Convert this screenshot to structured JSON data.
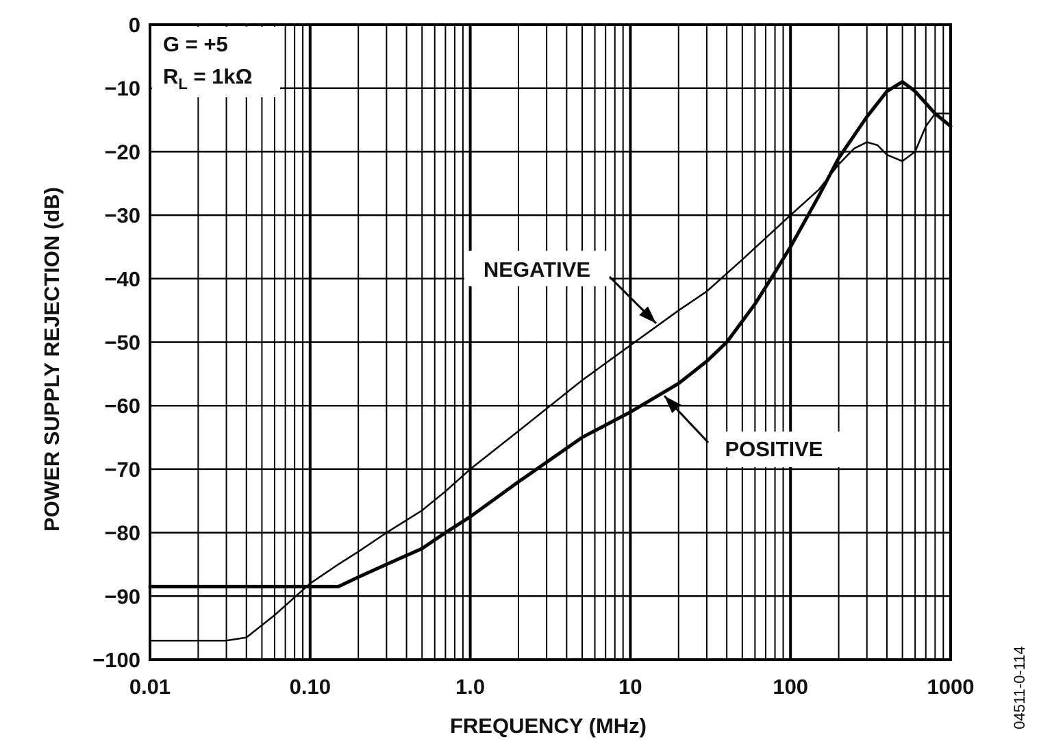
{
  "chart_data": {
    "type": "line",
    "xlabel": "FREQUENCY (MHz)",
    "ylabel": "POWER SUPPLY REJECTION (dB)",
    "x_scale": "log",
    "xlim": [
      0.01,
      1000
    ],
    "ylim": [
      -100,
      0
    ],
    "x_tick_labels": [
      "0.01",
      "0.10",
      "1.0",
      "10",
      "100",
      "1000"
    ],
    "y_tick_labels": [
      "0",
      "−10",
      "−20",
      "−30",
      "−40",
      "−50",
      "−60",
      "−70",
      "−80",
      "−90",
      "−100"
    ],
    "grid": true,
    "condition_line1": "G = +5",
    "condition_line2_main": "R",
    "condition_line2_sub": "L",
    "condition_line2_rest": " = 1kΩ",
    "figure_id": "04511-0-114",
    "series": [
      {
        "name": "NEGATIVE",
        "points": [
          [
            0.01,
            -97
          ],
          [
            0.02,
            -97
          ],
          [
            0.03,
            -97
          ],
          [
            0.04,
            -96.5
          ],
          [
            0.06,
            -93
          ],
          [
            0.1,
            -88
          ],
          [
            0.15,
            -85
          ],
          [
            0.2,
            -83
          ],
          [
            0.3,
            -80
          ],
          [
            0.5,
            -76.5
          ],
          [
            0.7,
            -73.5
          ],
          [
            1,
            -70
          ],
          [
            2,
            -64
          ],
          [
            5,
            -56
          ],
          [
            10,
            -50.5
          ],
          [
            20,
            -45
          ],
          [
            30,
            -42
          ],
          [
            50,
            -37
          ],
          [
            100,
            -30
          ],
          [
            150,
            -26
          ],
          [
            200,
            -22
          ],
          [
            250,
            -19.5
          ],
          [
            300,
            -18.5
          ],
          [
            350,
            -19
          ],
          [
            400,
            -20.5
          ],
          [
            500,
            -21.5
          ],
          [
            600,
            -20
          ],
          [
            700,
            -16
          ],
          [
            800,
            -14
          ],
          [
            1000,
            -14
          ]
        ]
      },
      {
        "name": "POSITIVE",
        "points": [
          [
            0.01,
            -88.5
          ],
          [
            0.05,
            -88.5
          ],
          [
            0.1,
            -88.5
          ],
          [
            0.15,
            -88.5
          ],
          [
            0.2,
            -87
          ],
          [
            0.3,
            -85
          ],
          [
            0.5,
            -82.5
          ],
          [
            0.7,
            -80
          ],
          [
            1,
            -77.5
          ],
          [
            2,
            -72
          ],
          [
            5,
            -65
          ],
          [
            10,
            -61
          ],
          [
            20,
            -56.5
          ],
          [
            30,
            -53
          ],
          [
            40,
            -50
          ],
          [
            60,
            -44
          ],
          [
            80,
            -39
          ],
          [
            100,
            -35
          ],
          [
            150,
            -27
          ],
          [
            200,
            -21
          ],
          [
            300,
            -14.5
          ],
          [
            400,
            -10.5
          ],
          [
            500,
            -9
          ],
          [
            600,
            -10.5
          ],
          [
            800,
            -14
          ],
          [
            1000,
            -16
          ]
        ]
      }
    ],
    "annotations": [
      {
        "text": "NEGATIVE",
        "series": "NEGATIVE",
        "x": 15,
        "y": -48
      },
      {
        "text": "POSITIVE",
        "series": "POSITIVE",
        "x": 13,
        "y": -58
      }
    ]
  }
}
